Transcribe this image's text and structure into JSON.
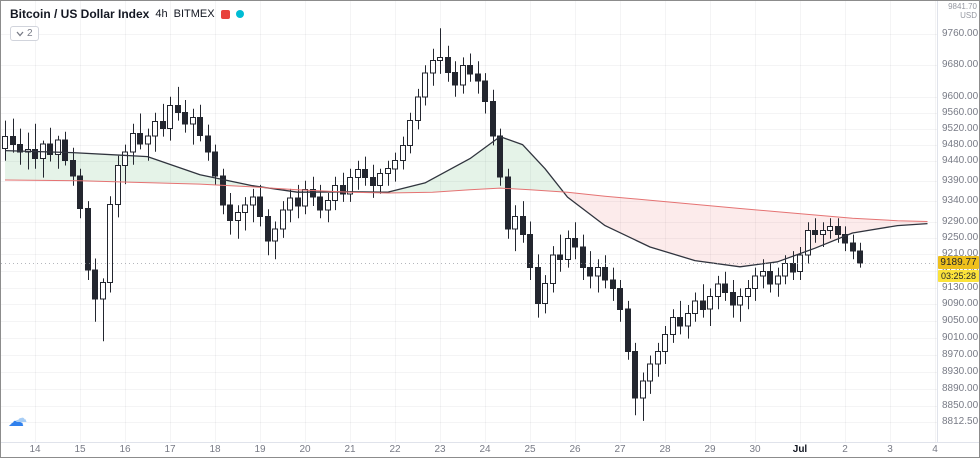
{
  "header": {
    "symbol_title": "Bitcoin / US Dollar Index",
    "interval": "4h",
    "exchange": "BITMEX",
    "indicators_chip": "2"
  },
  "axis_top_right": {
    "value": "9841.70",
    "unit": "USD"
  },
  "price_scale": {
    "labels": [
      "9760.00",
      "9680.00",
      "9600.00",
      "9560.00",
      "9520.00",
      "9480.00",
      "9440.00",
      "9390.00",
      "9340.00",
      "9290.00",
      "9250.00",
      "9210.00",
      "9170.00",
      "9130.00",
      "9090.00",
      "9050.00",
      "9010.00",
      "8970.00",
      "8930.00",
      "8890.00",
      "8850.00",
      "8812.50"
    ],
    "last_price": "9189.77",
    "countdown": "03:25:28"
  },
  "time_scale": {
    "labels": [
      {
        "label": "14",
        "index": 4
      },
      {
        "label": "15",
        "index": 10
      },
      {
        "label": "16",
        "index": 16
      },
      {
        "label": "17",
        "index": 22
      },
      {
        "label": "18",
        "index": 28
      },
      {
        "label": "19",
        "index": 34
      },
      {
        "label": "20",
        "index": 40
      },
      {
        "label": "21",
        "index": 46
      },
      {
        "label": "22",
        "index": 52
      },
      {
        "label": "23",
        "index": 58
      },
      {
        "label": "24",
        "index": 64
      },
      {
        "label": "25",
        "index": 70
      },
      {
        "label": "26",
        "index": 76
      },
      {
        "label": "27",
        "index": 82
      },
      {
        "label": "28",
        "index": 88
      },
      {
        "label": "29",
        "index": 94
      },
      {
        "label": "30",
        "index": 100
      },
      {
        "label": "Jul",
        "index": 106,
        "bold": true
      },
      {
        "label": "2",
        "index": 112
      },
      {
        "label": "3",
        "index": 118
      },
      {
        "label": "4",
        "index": 124
      }
    ]
  },
  "colors": {
    "grid": "rgba(42,46,57,0.05)",
    "candle_border": "#23262f",
    "up_candle": "#ffffff",
    "down_candle": "#23262f",
    "fill_bull": "rgba(96,178,110,0.16)",
    "fill_bear": "rgba(235,112,110,0.14)",
    "last_price_line": "#9598a1",
    "badge_price_bg": "#efc01b",
    "badge_countdown_bg": "#fbe33b",
    "badge_text": "#1e222d",
    "logo_color": "#e8413c",
    "status_dot_color": "#00bcd4"
  },
  "chart_data": {
    "type": "candlestick",
    "title": "Bitcoin / US Dollar Index",
    "interval": "4h",
    "exchange": "BITMEX",
    "ylim": [
      8812.5,
      9795
    ],
    "scale": "log",
    "grid": true,
    "last_price": 9189.77,
    "candles_ohlc": [
      [
        9470,
        9540,
        9440,
        9500
      ],
      [
        9500,
        9545,
        9460,
        9480
      ],
      [
        9480,
        9520,
        9430,
        9462
      ],
      [
        9462,
        9510,
        9418,
        9468
      ],
      [
        9468,
        9532,
        9420,
        9445
      ],
      [
        9445,
        9490,
        9398,
        9482
      ],
      [
        9482,
        9522,
        9438,
        9455
      ],
      [
        9455,
        9502,
        9420,
        9492
      ],
      [
        9492,
        9512,
        9428,
        9440
      ],
      [
        9440,
        9472,
        9378,
        9402
      ],
      [
        9402,
        9420,
        9298,
        9322
      ],
      [
        9322,
        9340,
        9148,
        9172
      ],
      [
        9172,
        9200,
        9048,
        9102
      ],
      [
        9102,
        9152,
        9002,
        9142
      ],
      [
        9142,
        9352,
        9118,
        9332
      ],
      [
        9332,
        9452,
        9300,
        9428
      ],
      [
        9428,
        9480,
        9382,
        9462
      ],
      [
        9462,
        9532,
        9430,
        9508
      ],
      [
        9508,
        9558,
        9468,
        9482
      ],
      [
        9482,
        9520,
        9440,
        9502
      ],
      [
        9502,
        9560,
        9462,
        9538
      ],
      [
        9538,
        9582,
        9500,
        9520
      ],
      [
        9520,
        9600,
        9490,
        9578
      ],
      [
        9578,
        9625,
        9540,
        9560
      ],
      [
        9560,
        9592,
        9510,
        9532
      ],
      [
        9532,
        9570,
        9480,
        9548
      ],
      [
        9548,
        9580,
        9488,
        9502
      ],
      [
        9502,
        9530,
        9440,
        9462
      ],
      [
        9462,
        9480,
        9380,
        9402
      ],
      [
        9402,
        9420,
        9308,
        9330
      ],
      [
        9330,
        9360,
        9258,
        9292
      ],
      [
        9292,
        9330,
        9248,
        9312
      ],
      [
        9312,
        9350,
        9268,
        9330
      ],
      [
        9330,
        9370,
        9288,
        9350
      ],
      [
        9350,
        9380,
        9278,
        9302
      ],
      [
        9302,
        9320,
        9208,
        9242
      ],
      [
        9242,
        9290,
        9198,
        9272
      ],
      [
        9272,
        9340,
        9250,
        9318
      ],
      [
        9318,
        9370,
        9288,
        9348
      ],
      [
        9348,
        9380,
        9298,
        9328
      ],
      [
        9328,
        9390,
        9308,
        9368
      ],
      [
        9368,
        9400,
        9328,
        9350
      ],
      [
        9350,
        9380,
        9298,
        9318
      ],
      [
        9318,
        9360,
        9288,
        9342
      ],
      [
        9342,
        9400,
        9318,
        9378
      ],
      [
        9378,
        9410,
        9338,
        9358
      ],
      [
        9358,
        9420,
        9338,
        9398
      ],
      [
        9398,
        9440,
        9368,
        9418
      ],
      [
        9418,
        9450,
        9378,
        9398
      ],
      [
        9398,
        9430,
        9348,
        9378
      ],
      [
        9378,
        9420,
        9358,
        9408
      ],
      [
        9408,
        9440,
        9378,
        9420
      ],
      [
        9420,
        9460,
        9388,
        9440
      ],
      [
        9440,
        9500,
        9418,
        9478
      ],
      [
        9478,
        9560,
        9458,
        9540
      ],
      [
        9540,
        9620,
        9518,
        9600
      ],
      [
        9600,
        9680,
        9578,
        9660
      ],
      [
        9660,
        9722,
        9628,
        9692
      ],
      [
        9692,
        9775,
        9658,
        9700
      ],
      [
        9700,
        9730,
        9638,
        9662
      ],
      [
        9662,
        9690,
        9600,
        9630
      ],
      [
        9630,
        9700,
        9608,
        9680
      ],
      [
        9680,
        9710,
        9638,
        9658
      ],
      [
        9658,
        9690,
        9608,
        9640
      ],
      [
        9640,
        9660,
        9558,
        9588
      ],
      [
        9588,
        9618,
        9478,
        9502
      ],
      [
        9502,
        9520,
        9378,
        9400
      ],
      [
        9400,
        9420,
        9248,
        9272
      ],
      [
        9272,
        9330,
        9218,
        9302
      ],
      [
        9302,
        9340,
        9238,
        9258
      ],
      [
        9258,
        9290,
        9148,
        9178
      ],
      [
        9178,
        9210,
        9058,
        9092
      ],
      [
        9092,
        9160,
        9068,
        9140
      ],
      [
        9140,
        9230,
        9118,
        9208
      ],
      [
        9208,
        9258,
        9168,
        9198
      ],
      [
        9198,
        9268,
        9178,
        9248
      ],
      [
        9248,
        9288,
        9198,
        9228
      ],
      [
        9228,
        9258,
        9148,
        9178
      ],
      [
        9178,
        9218,
        9128,
        9158
      ],
      [
        9158,
        9198,
        9118,
        9178
      ],
      [
        9178,
        9208,
        9128,
        9148
      ],
      [
        9148,
        9178,
        9098,
        9128
      ],
      [
        9128,
        9148,
        9048,
        9078
      ],
      [
        9078,
        9098,
        8958,
        8978
      ],
      [
        8978,
        8998,
        8828,
        8868
      ],
      [
        8868,
        8928,
        8815,
        8908
      ],
      [
        8908,
        8968,
        8878,
        8948
      ],
      [
        8948,
        8998,
        8918,
        8978
      ],
      [
        8978,
        9038,
        8948,
        9018
      ],
      [
        9018,
        9078,
        8998,
        9058
      ],
      [
        9058,
        9098,
        9018,
        9038
      ],
      [
        9038,
        9088,
        9008,
        9068
      ],
      [
        9068,
        9118,
        9048,
        9098
      ],
      [
        9098,
        9138,
        9058,
        9078
      ],
      [
        9078,
        9128,
        9038,
        9108
      ],
      [
        9108,
        9158,
        9078,
        9138
      ],
      [
        9138,
        9168,
        9098,
        9118
      ],
      [
        9118,
        9148,
        9058,
        9088
      ],
      [
        9088,
        9128,
        9048,
        9108
      ],
      [
        9108,
        9148,
        9078,
        9128
      ],
      [
        9128,
        9178,
        9098,
        9158
      ],
      [
        9158,
        9198,
        9128,
        9168
      ],
      [
        9168,
        9188,
        9118,
        9138
      ],
      [
        9138,
        9178,
        9108,
        9158
      ],
      [
        9158,
        9208,
        9138,
        9188
      ],
      [
        9188,
        9218,
        9148,
        9168
      ],
      [
        9168,
        9228,
        9148,
        9208
      ],
      [
        9208,
        9288,
        9188,
        9268
      ],
      [
        9268,
        9298,
        9238,
        9258
      ],
      [
        9258,
        9288,
        9228,
        9268
      ],
      [
        9268,
        9298,
        9248,
        9278
      ],
      [
        9278,
        9298,
        9238,
        9258
      ],
      [
        9258,
        9278,
        9218,
        9238
      ],
      [
        9238,
        9258,
        9198,
        9218
      ],
      [
        9218,
        9238,
        9178,
        9189.77
      ]
    ],
    "indicators": [
      {
        "name": "ma-fast-line",
        "color": "#30343e",
        "width": 1.3,
        "points": [
          [
            0,
            9465
          ],
          [
            9,
            9460
          ],
          [
            19,
            9450
          ],
          [
            26,
            9405
          ],
          [
            33,
            9378
          ],
          [
            39,
            9362
          ],
          [
            46,
            9363
          ],
          [
            51,
            9362
          ],
          [
            56,
            9385
          ],
          [
            62,
            9445
          ],
          [
            66,
            9500
          ],
          [
            69,
            9480
          ],
          [
            72,
            9420
          ],
          [
            75,
            9350
          ],
          [
            80,
            9280
          ],
          [
            86,
            9228
          ],
          [
            92,
            9195
          ],
          [
            98,
            9180
          ],
          [
            103,
            9192
          ],
          [
            108,
            9225
          ],
          [
            113,
            9262
          ],
          [
            119,
            9280
          ],
          [
            123,
            9285
          ]
        ]
      },
      {
        "name": "ma-slow-line",
        "color": "#e57373",
        "width": 1,
        "points": [
          [
            0,
            9392
          ],
          [
            10,
            9390
          ],
          [
            20,
            9385
          ],
          [
            26,
            9382
          ],
          [
            33,
            9375
          ],
          [
            39,
            9368
          ],
          [
            46,
            9362
          ],
          [
            51,
            9360
          ],
          [
            57,
            9362
          ],
          [
            62,
            9368
          ],
          [
            66,
            9372
          ],
          [
            70,
            9368
          ],
          [
            75,
            9362
          ],
          [
            80,
            9352
          ],
          [
            86,
            9342
          ],
          [
            92,
            9332
          ],
          [
            98,
            9322
          ],
          [
            103,
            9314
          ],
          [
            108,
            9306
          ],
          [
            113,
            9298
          ],
          [
            119,
            9292
          ],
          [
            123,
            9290
          ]
        ]
      }
    ]
  }
}
